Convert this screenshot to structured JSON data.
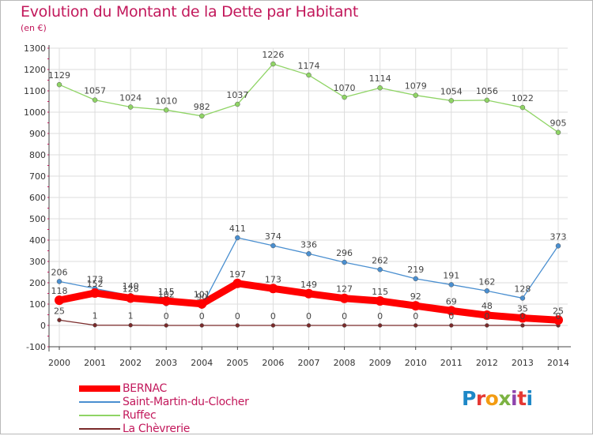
{
  "title": "Evolution du Montant de la Dette par Habitant",
  "subtitle": "(en €)",
  "logo_text": "Proxiti",
  "colors": {
    "title": "#c2185b",
    "grid": "#dddddd",
    "axis_text": "#333333",
    "bernac": "#ff0000",
    "saint_martin": "#4a8fd0",
    "ruffec": "#8fd465",
    "chevrerie": "#7a2a2a"
  },
  "chart_data": {
    "type": "line",
    "x": [
      2000,
      2001,
      2002,
      2003,
      2004,
      2005,
      2006,
      2007,
      2008,
      2009,
      2010,
      2011,
      2012,
      2013,
      2014
    ],
    "ylim": [
      -100,
      1300
    ],
    "yticks": [
      -100,
      0,
      100,
      200,
      300,
      400,
      500,
      600,
      700,
      800,
      900,
      1000,
      1100,
      1200,
      1300
    ],
    "grid": true,
    "legend_position": "bottom-left",
    "series": [
      {
        "name": "BERNAC",
        "values": [
          118,
          152,
          128,
          115,
          101,
          197,
          173,
          149,
          127,
          115,
          92,
          69,
          48,
          35,
          25
        ]
      },
      {
        "name": "Saint-Martin-du-Clocher",
        "values": [
          206,
          173,
          140,
          102,
          90,
          411,
          374,
          336,
          296,
          262,
          219,
          191,
          162,
          128,
          373
        ]
      },
      {
        "name": "Ruffec",
        "values": [
          1129,
          1057,
          1024,
          1010,
          982,
          1037,
          1226,
          1174,
          1070,
          1114,
          1079,
          1054,
          1056,
          1022,
          905
        ]
      },
      {
        "name": "La Chèvrerie",
        "values": [
          25,
          1,
          1,
          0,
          0,
          0,
          0,
          0,
          0,
          0,
          0,
          0,
          0,
          0,
          0
        ]
      }
    ]
  }
}
